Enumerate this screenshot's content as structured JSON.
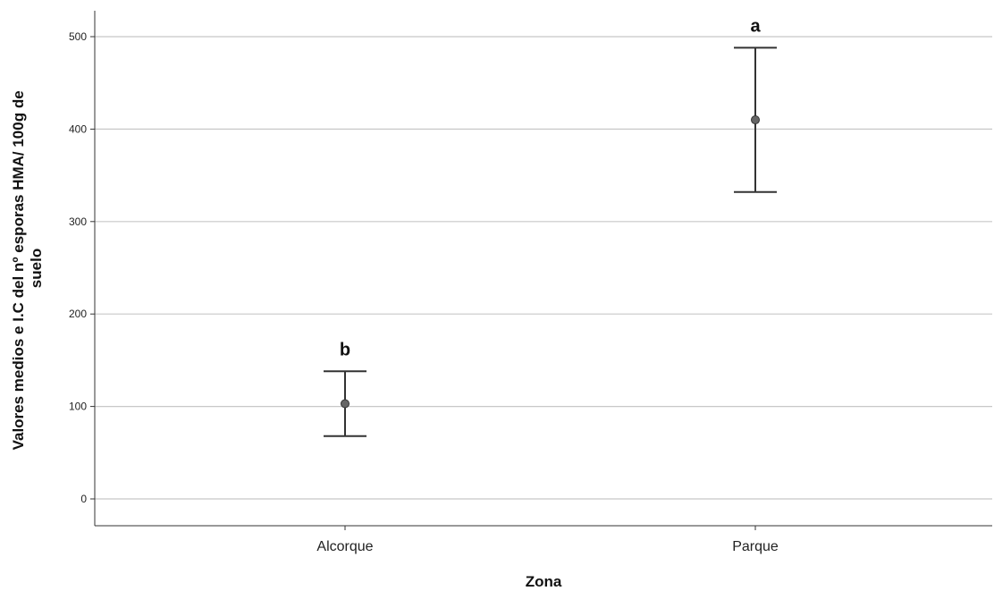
{
  "chart_data": {
    "type": "scatter",
    "title": "",
    "xlabel": "Zona",
    "ylabel_lines": [
      "Valores medios e I.C del nº esporas HMA/ 100g de",
      "suelo"
    ],
    "categories": [
      "Alcorque",
      "Parque"
    ],
    "series": [
      {
        "values": [
          103,
          410
        ],
        "ci_lower": [
          68,
          332
        ],
        "ci_upper": [
          138,
          488
        ]
      }
    ],
    "annotations": [
      "b",
      "a"
    ],
    "yticks": [
      0,
      100,
      200,
      300,
      400,
      500
    ],
    "ylim": [
      -30,
      530
    ],
    "grid": true,
    "colors": {
      "grid": "#c8c8c8",
      "axis": "#333333",
      "marker_fill": "#666666",
      "errorbar": "#333333"
    }
  }
}
